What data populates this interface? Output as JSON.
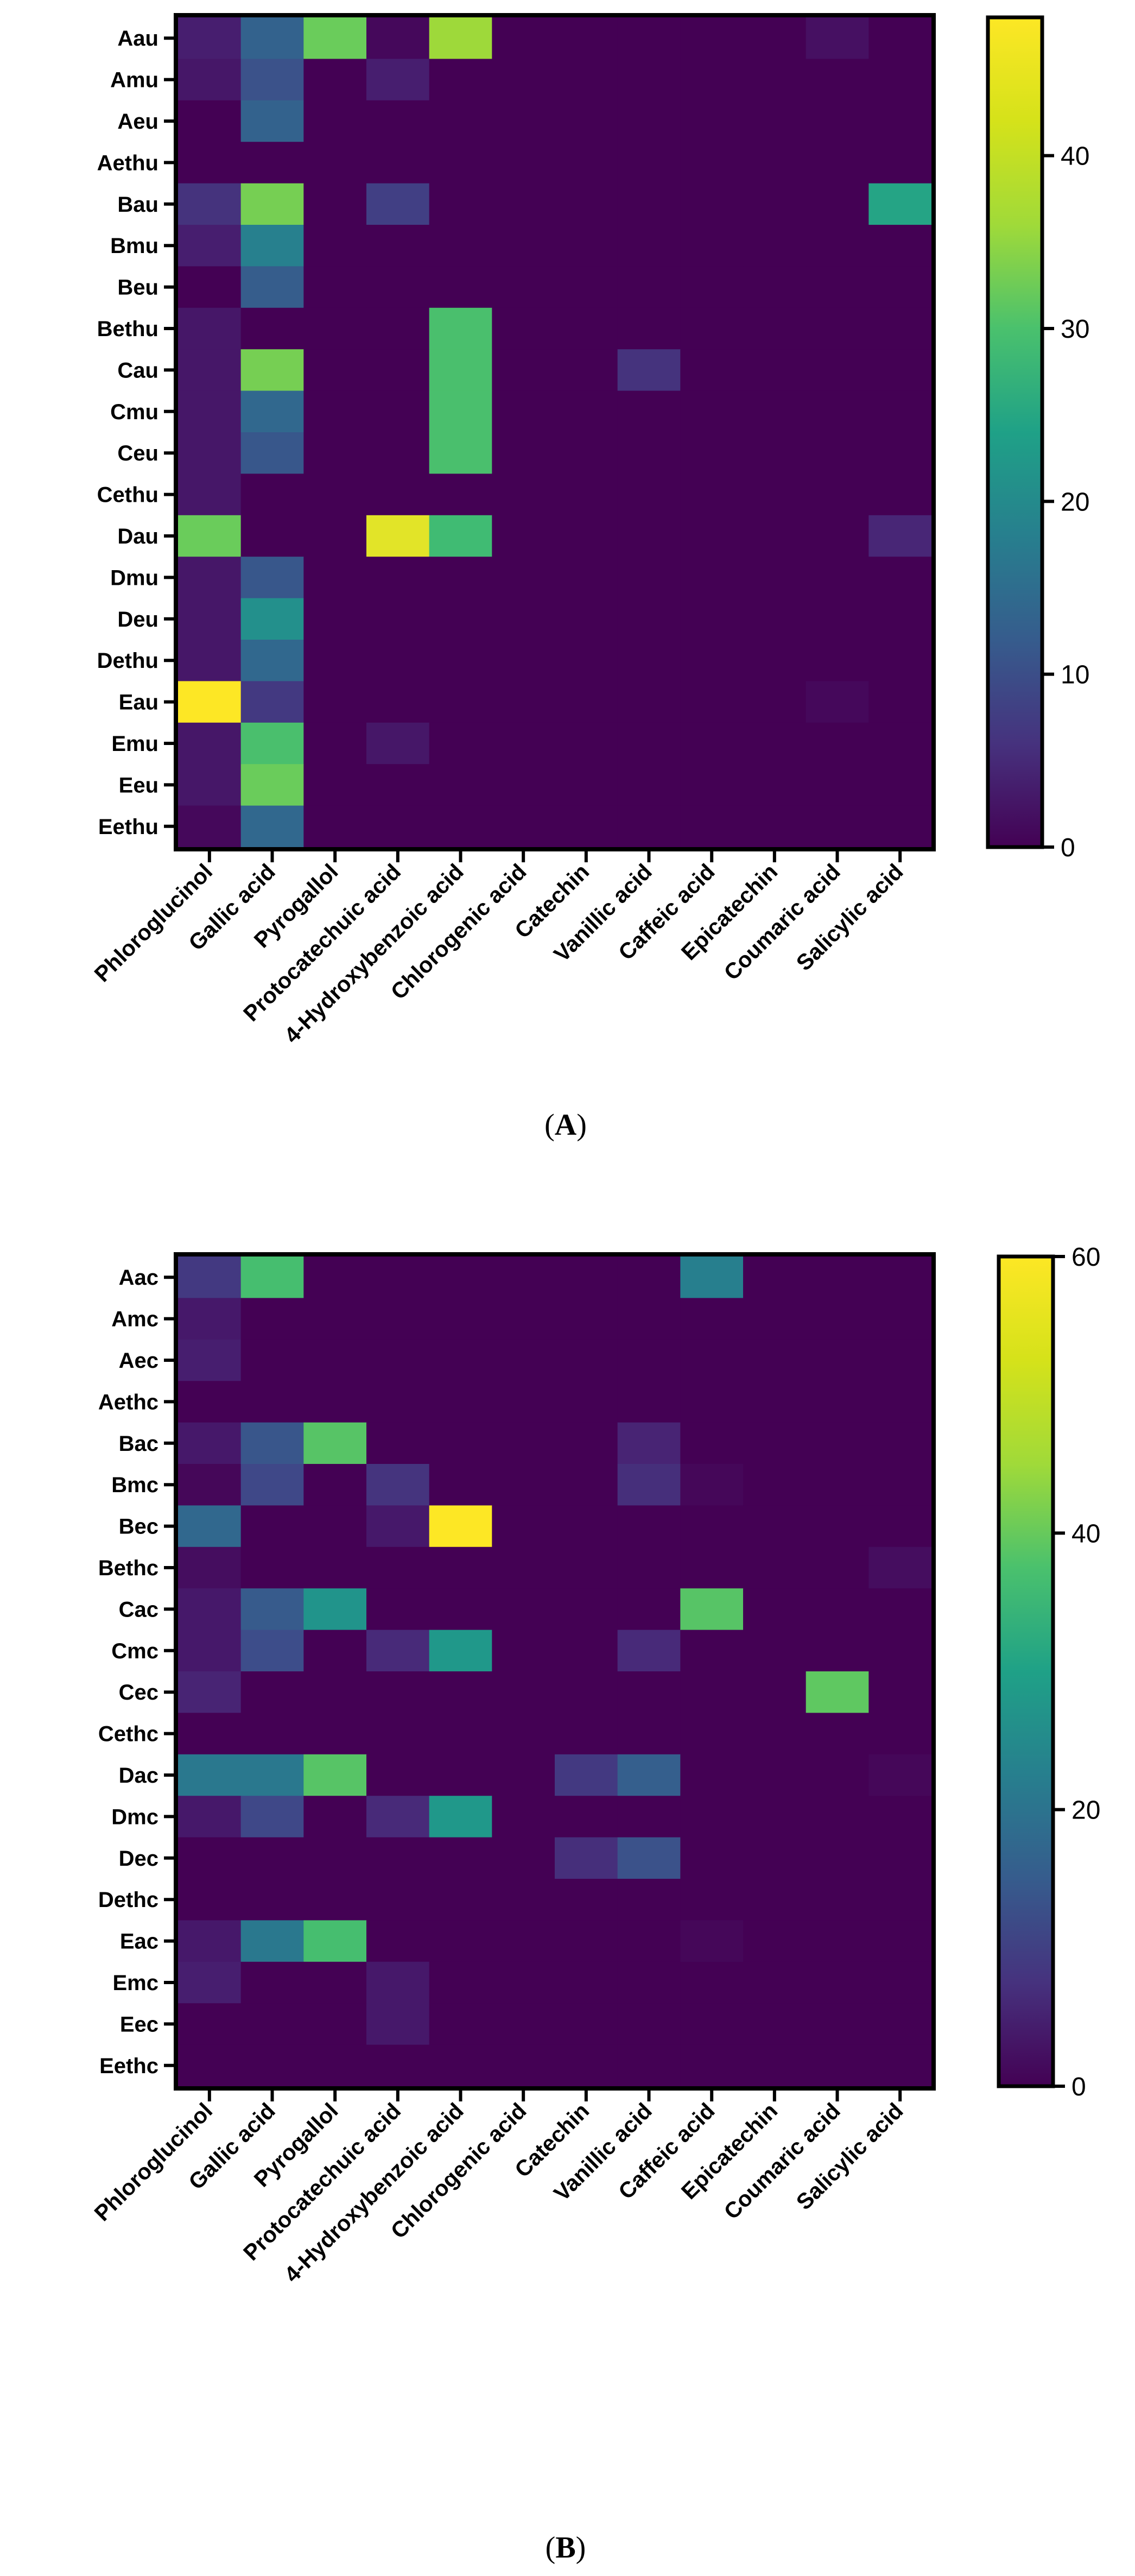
{
  "chart_data": [
    {
      "type": "heatmap",
      "panel_label": "A",
      "title": "",
      "xlabel": "",
      "ylabel": "",
      "colormap": "viridis",
      "colorbar_range": [
        0,
        48
      ],
      "colorbar_ticks": [
        "0",
        "10",
        "20",
        "30",
        "40"
      ],
      "columns": [
        "Phloroglucinol",
        "Gallic acid",
        "Pyrogallol",
        "Protocatechuic acid",
        "4-Hydroxybenzoic acid",
        "Chlorogenic acid",
        "Catechin",
        "Vanillic acid",
        "Caffeic acid",
        "Epicatechin",
        "Coumaric acid",
        "Salicylic acid"
      ],
      "rows": [
        "Aau",
        "Amu",
        "Aeu",
        "Aethu",
        "Bau",
        "Bmu",
        "Beu",
        "Bethu",
        "Cau",
        "Cmu",
        "Ceu",
        "Cethu",
        "Dau",
        "Dmu",
        "Deu",
        "Dethu",
        "Eau",
        "Emu",
        "Eeu",
        "Eethu"
      ],
      "values": [
        [
          4,
          15,
          37,
          1,
          41,
          0,
          0,
          0,
          0,
          0,
          2,
          0
        ],
        [
          3,
          12,
          0,
          4,
          0,
          0,
          0,
          0,
          0,
          0,
          0,
          0
        ],
        [
          0,
          15,
          0,
          0,
          0,
          0,
          0,
          0,
          0,
          0,
          0,
          0
        ],
        [
          0,
          0,
          0,
          0,
          0,
          0,
          0,
          0,
          0,
          0,
          0,
          0
        ],
        [
          7,
          38,
          0,
          9,
          0,
          0,
          0,
          0,
          0,
          0,
          0,
          28
        ],
        [
          4,
          21,
          0,
          0,
          0,
          0,
          0,
          0,
          0,
          0,
          0,
          0
        ],
        [
          0,
          14,
          0,
          0,
          0,
          0,
          0,
          0,
          0,
          0,
          0,
          0
        ],
        [
          3,
          0,
          0,
          0,
          34,
          0,
          0,
          0,
          0,
          0,
          0,
          0
        ],
        [
          3,
          38,
          0,
          0,
          34,
          0,
          0,
          7,
          0,
          0,
          0,
          0
        ],
        [
          3,
          16,
          0,
          0,
          34,
          0,
          0,
          0,
          0,
          0,
          0,
          0
        ],
        [
          3,
          13,
          0,
          0,
          34,
          0,
          0,
          0,
          0,
          0,
          0,
          0
        ],
        [
          3,
          0,
          0,
          0,
          0,
          0,
          0,
          0,
          0,
          0,
          0,
          0
        ],
        [
          37,
          0,
          0,
          46,
          33,
          0,
          0,
          0,
          0,
          0,
          0,
          5
        ],
        [
          3,
          13,
          0,
          0,
          0,
          0,
          0,
          0,
          0,
          0,
          0,
          0
        ],
        [
          3,
          24,
          0,
          0,
          0,
          0,
          0,
          0,
          0,
          0,
          0,
          0
        ],
        [
          3,
          16,
          0,
          0,
          0,
          0,
          0,
          0,
          0,
          0,
          0,
          0
        ],
        [
          48,
          8,
          0,
          0,
          0,
          0,
          0,
          0,
          0,
          0,
          1,
          0
        ],
        [
          3,
          34,
          0,
          3,
          0,
          0,
          0,
          0,
          0,
          0,
          0,
          0
        ],
        [
          3,
          37,
          0,
          0,
          0,
          0,
          0,
          0,
          0,
          0,
          0,
          0
        ],
        [
          1,
          16,
          0,
          0,
          0,
          0,
          0,
          0,
          0,
          0,
          0,
          0
        ]
      ]
    },
    {
      "type": "heatmap",
      "panel_label": "B",
      "title": "",
      "xlabel": "",
      "ylabel": "",
      "colormap": "viridis",
      "colorbar_range": [
        0,
        60
      ],
      "colorbar_ticks": [
        "0",
        "20",
        "40",
        "60"
      ],
      "columns": [
        "Phloroglucinol",
        "Gallic acid",
        "Pyrogallol",
        "Protocatechuic acid",
        "4-Hydroxybenzoic acid",
        "Chlorogenic acid",
        "Catechin",
        "Vanillic acid",
        "Caffeic acid",
        "Epicatechin",
        "Coumaric acid",
        "Salicylic acid"
      ],
      "rows": [
        "Aac",
        "Amc",
        "Aec",
        "Aethc",
        "Bac",
        "Bmc",
        "Bec",
        "Bethc",
        "Cac",
        "Cmc",
        "Cec",
        "Cethc",
        "Dac",
        "Dmc",
        "Dec",
        "Dethc",
        "Eac",
        "Emc",
        "Eec",
        "Eethc"
      ],
      "values": [
        [
          10,
          42,
          0,
          0,
          0,
          0,
          0,
          0,
          26,
          0,
          0,
          0
        ],
        [
          4,
          0,
          0,
          0,
          0,
          0,
          0,
          0,
          0,
          0,
          0,
          0
        ],
        [
          5,
          0,
          0,
          0,
          0,
          0,
          0,
          0,
          0,
          0,
          0,
          0
        ],
        [
          0,
          0,
          0,
          0,
          0,
          0,
          0,
          0,
          0,
          0,
          0,
          0
        ],
        [
          4,
          16,
          44,
          0,
          0,
          0,
          0,
          6,
          0,
          0,
          0,
          0
        ],
        [
          1,
          13,
          0,
          9,
          0,
          0,
          0,
          8,
          1,
          0,
          0,
          0
        ],
        [
          20,
          0,
          0,
          4,
          60,
          0,
          0,
          0,
          0,
          0,
          0,
          0
        ],
        [
          2,
          0,
          0,
          0,
          0,
          0,
          0,
          0,
          0,
          0,
          0,
          2
        ],
        [
          4,
          17,
          31,
          0,
          0,
          0,
          0,
          0,
          44,
          0,
          0,
          0
        ],
        [
          4,
          14,
          0,
          7,
          32,
          0,
          0,
          7,
          0,
          0,
          0,
          0
        ],
        [
          6,
          0,
          0,
          0,
          0,
          0,
          0,
          0,
          0,
          0,
          45,
          0
        ],
        [
          0,
          0,
          0,
          0,
          0,
          0,
          0,
          0,
          0,
          0,
          0,
          0
        ],
        [
          24,
          24,
          44,
          0,
          0,
          0,
          10,
          18,
          0,
          0,
          0,
          1
        ],
        [
          4,
          13,
          0,
          7,
          32,
          0,
          0,
          0,
          0,
          0,
          0,
          0
        ],
        [
          0,
          0,
          0,
          0,
          0,
          0,
          8,
          15,
          0,
          0,
          0,
          0
        ],
        [
          0,
          0,
          0,
          0,
          0,
          0,
          0,
          0,
          0,
          0,
          0,
          0
        ],
        [
          4,
          24,
          42,
          0,
          0,
          0,
          0,
          0,
          1,
          0,
          0,
          0
        ],
        [
          5,
          0,
          0,
          4,
          0,
          0,
          0,
          0,
          0,
          0,
          0,
          0
        ],
        [
          0,
          0,
          0,
          4,
          0,
          0,
          0,
          0,
          0,
          0,
          0,
          0
        ],
        [
          0,
          0,
          0,
          0,
          0,
          0,
          0,
          0,
          0,
          0,
          0,
          0
        ]
      ]
    }
  ]
}
